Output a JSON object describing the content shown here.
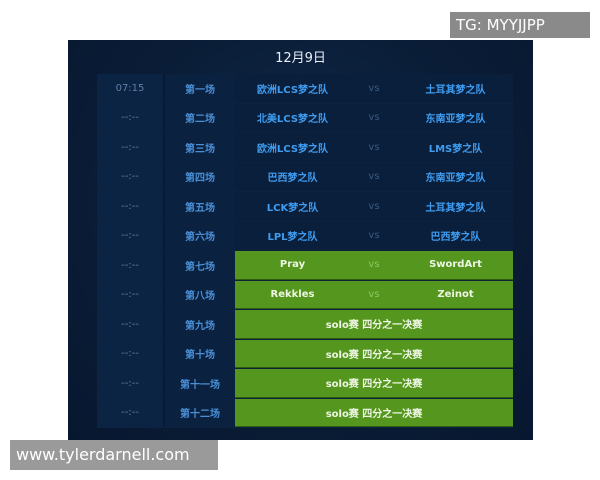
{
  "date": "12月9日",
  "vs": "vs",
  "matches": [
    {
      "time": "07:15",
      "game": "第一场",
      "team1": "欧洲LCS梦之队",
      "team2": "土耳其梦之队"
    },
    {
      "time": "--:--",
      "game": "第二场",
      "team1": "北美LCS梦之队",
      "team2": "东南亚梦之队"
    },
    {
      "time": "--:--",
      "game": "第三场",
      "team1": "欧洲LCS梦之队",
      "team2": "LMS梦之队"
    },
    {
      "time": "--:--",
      "game": "第四场",
      "team1": "巴西梦之队",
      "team2": "东南亚梦之队"
    },
    {
      "time": "--:--",
      "game": "第五场",
      "team1": "LCK梦之队",
      "team2": "土耳其梦之队"
    },
    {
      "time": "--:--",
      "game": "第六场",
      "team1": "LPL梦之队",
      "team2": "巴西梦之队"
    },
    {
      "time": "--:--",
      "game": "第七场",
      "team1": "Pray",
      "team2": "SwordArt",
      "green": true
    },
    {
      "time": "--:--",
      "game": "第八场",
      "team1": "Rekkles",
      "team2": "Zeinot",
      "green": true
    },
    {
      "time": "--:--",
      "game": "第九场",
      "label": "solo赛 四分之一决赛",
      "green": true
    },
    {
      "time": "--:--",
      "game": "第十场",
      "label": "solo赛 四分之一决赛",
      "green": true
    },
    {
      "time": "--:--",
      "game": "第十一场",
      "label": "solo赛 四分之一决赛",
      "green": true
    },
    {
      "time": "--:--",
      "game": "第十二场",
      "label": "solo赛 四分之一决赛",
      "green": true
    }
  ],
  "colors": {
    "panel": "#0a1c36",
    "highlight": "#55961e",
    "team_text": "#3f9cf0"
  },
  "watermarks": {
    "top": "TG: MYYJJPP",
    "bottom": "www.tylerdarnell.com"
  }
}
